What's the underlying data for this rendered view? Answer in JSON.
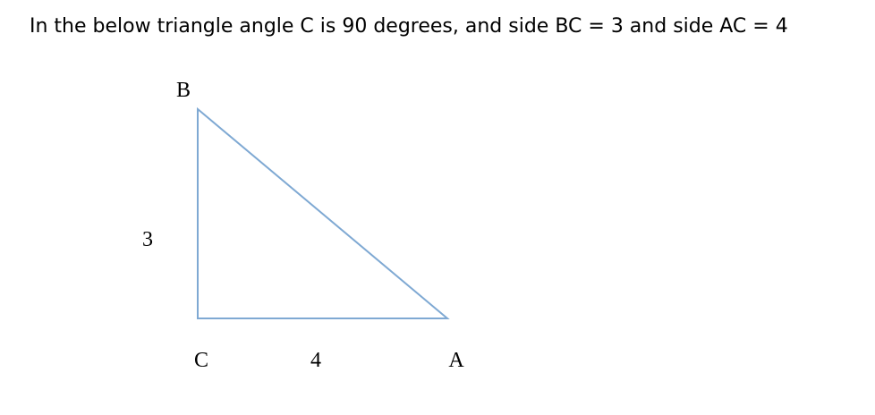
{
  "problem": {
    "text": "In the below triangle angle C is 90 degrees, and side BC = 3 and side AC = 4"
  },
  "diagram": {
    "vertices": {
      "B": "B",
      "C": "C",
      "A": "A"
    },
    "sides": {
      "BC": "3",
      "CA": "4"
    },
    "colors": {
      "edge": "#7fa9d3",
      "text": "#000000"
    }
  }
}
